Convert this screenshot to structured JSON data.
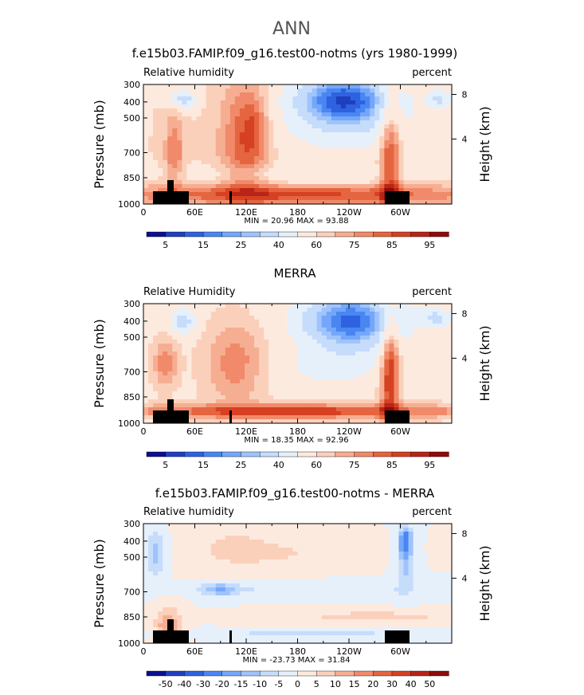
{
  "figure": {
    "title": "ANN",
    "y_axis_label": "Pressure (mb)",
    "y2_axis_label": "Height (km)",
    "corner_left_default": "Relative humidity",
    "corner_right": "percent"
  },
  "chart_data": [
    {
      "type": "heatmap",
      "title": "f.e15b03.FAMIP.f09_g16.test00-notms (yrs 1980-1999)",
      "corner_left": "Relative humidity",
      "corner_right": "percent",
      "x_ticks": [
        "0",
        "60E",
        "120E",
        "180",
        "120W",
        "60W"
      ],
      "y_ticks": [
        "300",
        "400",
        "500",
        "700",
        "850",
        "1000"
      ],
      "y2_ticks": [
        "8",
        "4"
      ],
      "min": 20.96,
      "max": 93.88,
      "min_max_text": "MIN =   20.96   MAX =   93.88",
      "colorbar_labels": [
        "5",
        "15",
        "25",
        "40",
        "60",
        "75",
        "85",
        "95"
      ],
      "colorbar_colors": [
        "#0b108f",
        "#1f3fbf",
        "#2e62e0",
        "#4a86f2",
        "#74a7fa",
        "#9fc4fb",
        "#c6dcfb",
        "#e6f0fb",
        "#fdeadf",
        "#fbd0bb",
        "#f6ae92",
        "#f08a6a",
        "#e4653f",
        "#d54122",
        "#b82416",
        "#8f0c0c"
      ],
      "fields": "rh_model"
    },
    {
      "type": "heatmap",
      "title": "MERRA",
      "corner_left": "Relative Humidity",
      "corner_right": "percent",
      "x_ticks": [
        "0",
        "60E",
        "120E",
        "180",
        "120W",
        "60W"
      ],
      "y_ticks": [
        "300",
        "400",
        "500",
        "700",
        "850",
        "1000"
      ],
      "y2_ticks": [
        "8",
        "4"
      ],
      "min": 18.35,
      "max": 92.96,
      "min_max_text": "MIN =   18.35   MAX =   92.96",
      "colorbar_labels": [
        "5",
        "15",
        "25",
        "40",
        "60",
        "75",
        "85",
        "95"
      ],
      "colorbar_colors": [
        "#0b108f",
        "#1f3fbf",
        "#2e62e0",
        "#4a86f2",
        "#74a7fa",
        "#9fc4fb",
        "#c6dcfb",
        "#e6f0fb",
        "#fdeadf",
        "#fbd0bb",
        "#f6ae92",
        "#f08a6a",
        "#e4653f",
        "#d54122",
        "#b82416",
        "#8f0c0c"
      ],
      "fields": "rh_obs"
    },
    {
      "type": "heatmap",
      "title": "f.e15b03.FAMIP.f09_g16.test00-notms - MERRA",
      "corner_left": "Relative humidity",
      "corner_right": "percent",
      "x_ticks": [
        "0",
        "60E",
        "120E",
        "180",
        "120W",
        "60W"
      ],
      "y_ticks": [
        "300",
        "400",
        "500",
        "700",
        "850",
        "1000"
      ],
      "y2_ticks": [
        "8",
        "4"
      ],
      "min": -23.73,
      "max": 31.84,
      "min_max_text": "MIN = -23.73   MAX =   31.84",
      "colorbar_labels": [
        "-50",
        "-40",
        "-30",
        "-20",
        "-15",
        "-10",
        "-5",
        "0",
        "5",
        "10",
        "15",
        "20",
        "30",
        "40",
        "50"
      ],
      "colorbar_colors": [
        "#0b108f",
        "#1f3fbf",
        "#2e62e0",
        "#4a86f2",
        "#74a7fa",
        "#9fc4fb",
        "#c6dcfb",
        "#e6f0fb",
        "#fdeadf",
        "#fbd0bb",
        "#f6ae92",
        "#f08a6a",
        "#e4653f",
        "#d54122",
        "#b82416",
        "#8f0c0c"
      ],
      "fields": "rh_diff"
    }
  ]
}
